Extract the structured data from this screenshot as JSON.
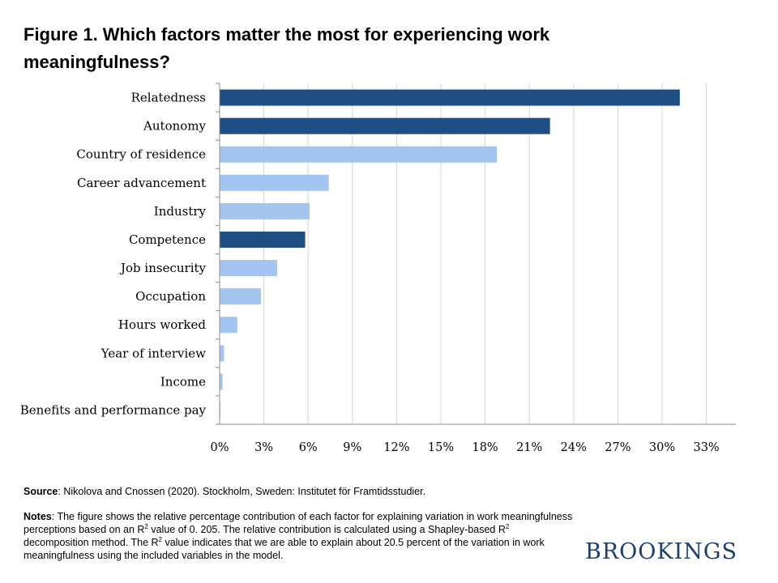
{
  "title": "Figure 1. Which factors matter the most for experiencing work meaningfulness?",
  "chart_data": {
    "type": "bar",
    "orientation": "horizontal",
    "categories": [
      "Relatedness",
      "Autonomy",
      "Country of residence",
      "Career advancement",
      "Industry",
      "Competence",
      "Job insecurity",
      "Occupation",
      "Hours worked",
      "Year of interview",
      "Income",
      "Benefits and performance pay"
    ],
    "values": [
      31.2,
      22.4,
      18.8,
      7.4,
      6.1,
      5.8,
      3.9,
      2.8,
      1.2,
      0.3,
      0.2,
      0.05
    ],
    "colors": [
      "#1f4e85",
      "#1f4e85",
      "#a3c5f0",
      "#a3c5f0",
      "#a3c5f0",
      "#1f4e85",
      "#a3c5f0",
      "#a3c5f0",
      "#a3c5f0",
      "#a3c5f0",
      "#a3c5f0",
      "#a3c5f0"
    ],
    "xticks": [
      "0%",
      "3%",
      "6%",
      "9%",
      "12%",
      "15%",
      "18%",
      "21%",
      "24%",
      "27%",
      "30%",
      "33%"
    ],
    "xlim": [
      0,
      35
    ],
    "grid": true,
    "legend": "none"
  },
  "footer": {
    "source_label": "Source",
    "source_text": ": Nikolova and Cnossen (2020). Stockholm, Sweden: Institutet för Framtidsstudier.",
    "notes_label": "Notes",
    "notes_text_1": ": The figure shows the relative percentage contribution of each factor for explaining variation in work meaningfulness perceptions based on an R",
    "notes_sup_1": "2",
    "notes_text_2": " value of 0. 205. The relative contribution is calculated using a Shapley-based R",
    "notes_sup_2": "2",
    "notes_text_3": " decomposition method. The R",
    "notes_sup_3": "2",
    "notes_text_4": " value indicates that we are able to explain about 20.5 percent of the variation in work meaningfulness using the included variables in the model."
  },
  "logo_text": "BROOKINGS"
}
